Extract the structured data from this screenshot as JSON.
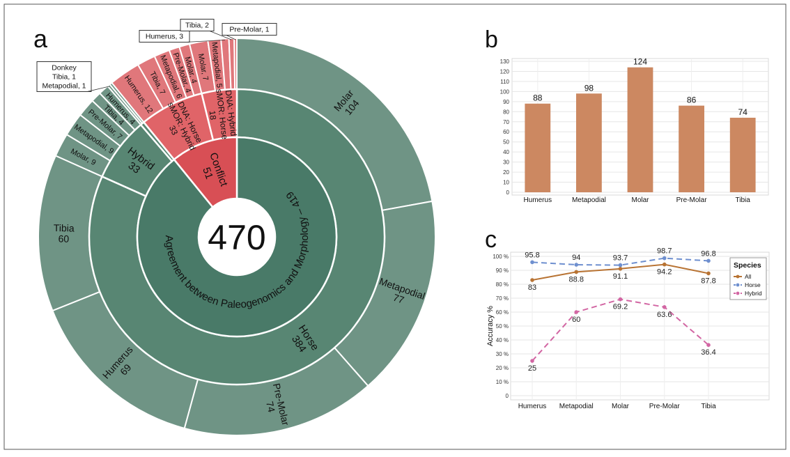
{
  "panels": {
    "a": "a",
    "b": "b",
    "c": "c"
  },
  "chart_data": [
    {
      "type": "sunburst",
      "panel": "a",
      "center_total": 470,
      "rings": {
        "inner": [
          {
            "label": "Agreement between Paleogenomics and Morphology – 419",
            "value": 419,
            "group": "agreement"
          },
          {
            "label": "Conflict",
            "value": 51,
            "group": "conflict"
          }
        ],
        "middle": [
          {
            "label": "Horse",
            "value": 384,
            "group": "agreement"
          },
          {
            "label": "Hybrid",
            "value": 33,
            "group": "agreement"
          },
          {
            "label": "Donkey",
            "value": 2,
            "group": "agreement"
          },
          {
            "label": "DNA: Horse sMOR: Hybrid",
            "value": 33,
            "group": "conflict"
          },
          {
            "label": "DNA: Hybrid sMOR: Horse",
            "value": 18,
            "group": "conflict"
          }
        ],
        "outer": [
          {
            "label": "Molar",
            "value": 104,
            "group": "agreement"
          },
          {
            "label": "Metapodial",
            "value": 77,
            "group": "agreement"
          },
          {
            "label": "Pre-Molar",
            "value": 74,
            "group": "agreement"
          },
          {
            "label": "Humerus",
            "value": 69,
            "group": "agreement"
          },
          {
            "label": "Tibia",
            "value": 60,
            "group": "agreement"
          },
          {
            "label": "Molar",
            "value": 9,
            "group": "agreement"
          },
          {
            "label": "Metapodial",
            "value": 9,
            "group": "agreement"
          },
          {
            "label": "Pre-Molar",
            "value": 7,
            "group": "agreement"
          },
          {
            "label": "Tibia",
            "value": 4,
            "group": "agreement"
          },
          {
            "label": "Humerus",
            "value": 4,
            "group": "agreement"
          },
          {
            "label": "Tibia",
            "value": 1,
            "group": "agreement"
          },
          {
            "label": "Metapodial",
            "value": 1,
            "group": "agreement"
          },
          {
            "label": "Humerus",
            "value": 12,
            "group": "conflict"
          },
          {
            "label": "Tibia",
            "value": 7,
            "group": "conflict"
          },
          {
            "label": "Metapodial",
            "value": 6,
            "group": "conflict"
          },
          {
            "label": "Pre-Molar",
            "value": 4,
            "group": "conflict"
          },
          {
            "label": "Molar",
            "value": 4,
            "group": "conflict"
          },
          {
            "label": "Molar",
            "value": 7,
            "group": "conflict"
          },
          {
            "label": "Metapodial",
            "value": 5,
            "group": "conflict"
          },
          {
            "label": "Humerus",
            "value": 3,
            "group": "conflict"
          },
          {
            "label": "Tibia",
            "value": 2,
            "group": "conflict"
          },
          {
            "label": "Pre-Molar",
            "value": 1,
            "group": "conflict"
          }
        ]
      },
      "callouts": [
        {
          "lines": [
            "Donkey",
            "Tibia, 1",
            "Metapodial, 1"
          ]
        },
        {
          "lines": [
            "Humerus, 3"
          ]
        },
        {
          "lines": [
            "Tibia,  2"
          ]
        },
        {
          "lines": [
            "Pre-Molar, 1"
          ]
        }
      ],
      "colors": {
        "agreement": [
          "#497a68",
          "#588673",
          "#6f9485"
        ],
        "conflict": [
          "#d84f55",
          "#e06468",
          "#e0777b"
        ]
      }
    },
    {
      "type": "bar",
      "panel": "b",
      "categories": [
        "Humerus",
        "Metapodial",
        "Molar",
        "Pre-Molar",
        "Tibia"
      ],
      "values": [
        88,
        98,
        124,
        86,
        74
      ],
      "ylim": [
        0,
        130
      ],
      "yticks": [
        0,
        10,
        20,
        30,
        40,
        50,
        60,
        70,
        80,
        90,
        100,
        110,
        120,
        130
      ],
      "xlabel": "",
      "ylabel": "",
      "grid": true,
      "color": "#cc8861"
    },
    {
      "type": "line",
      "panel": "c",
      "categories": [
        "Humerus",
        "Metapodial",
        "Molar",
        "Pre-Molar",
        "Tibia"
      ],
      "ylabel": "Accuracy %",
      "ylim": [
        0,
        100
      ],
      "yticks": [
        0,
        10,
        20,
        30,
        40,
        50,
        60,
        70,
        80,
        90,
        100
      ],
      "yticklabels": [
        "0",
        "10 %",
        "20 %",
        "30 %",
        "40 %",
        "50 %",
        "60 %",
        "70 %",
        "80 %",
        "90 %",
        "100 %"
      ],
      "grid": true,
      "legend": {
        "title": "Species",
        "placement": "top-right"
      },
      "series": [
        {
          "name": "All",
          "values": [
            83,
            88.8,
            91.1,
            94.2,
            87.8
          ],
          "color": "#b87333",
          "dash": false
        },
        {
          "name": "Horse",
          "values": [
            95.8,
            94,
            93.7,
            98.7,
            96.8
          ],
          "color": "#6e8fcf",
          "dash": true
        },
        {
          "name": "Hybrid",
          "values": [
            25,
            60,
            69.2,
            63.6,
            36.4
          ],
          "color": "#d266a3",
          "dash": true
        }
      ]
    }
  ]
}
